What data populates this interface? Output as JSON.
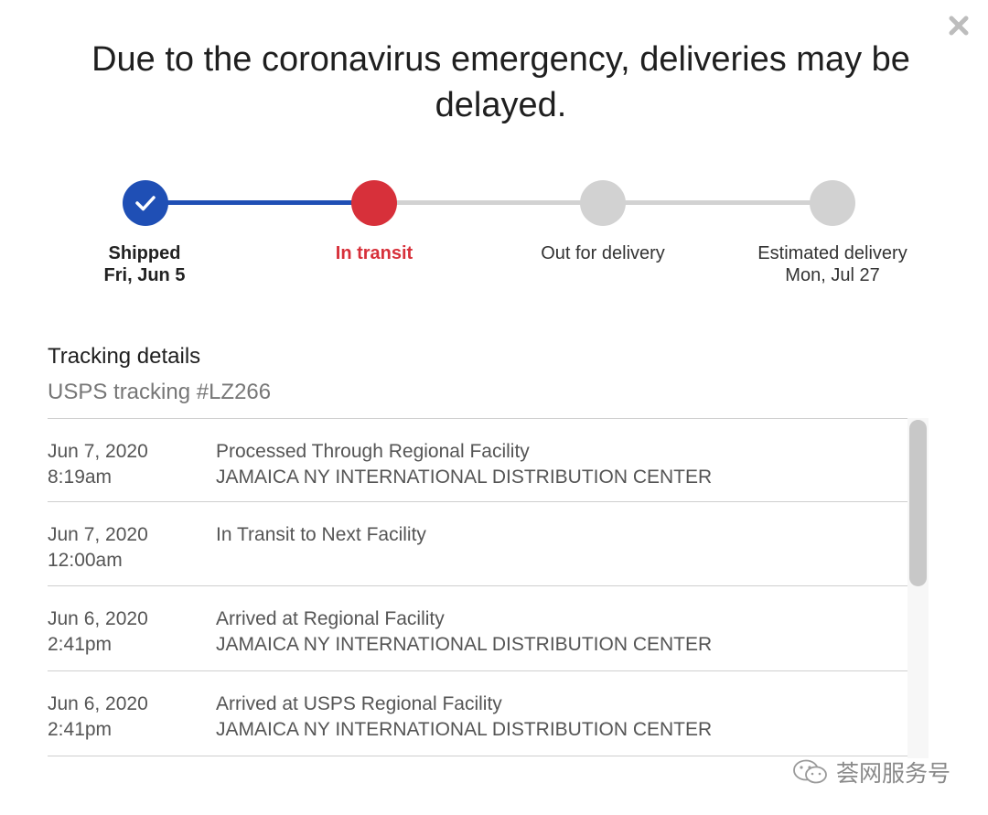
{
  "dialog": {
    "banner": "Due to the coronavirus emergency, deliveries may be delayed.",
    "close_icon": "close-icon"
  },
  "colors": {
    "done": "#1f4fb5",
    "current": "#d7303a",
    "pending": "#d2d2d2",
    "done_line": "#1f4fb5"
  },
  "progress": {
    "steps": [
      {
        "key": "shipped",
        "title": "Shipped",
        "date": "Fri, Jun 5",
        "status": "done",
        "icon": "checkmark-icon"
      },
      {
        "key": "in_transit",
        "title": "In transit",
        "date": "",
        "status": "current"
      },
      {
        "key": "out_for_delivery",
        "title": "Out for delivery",
        "date": "",
        "status": "pending"
      },
      {
        "key": "estimated_delivery",
        "title": "Estimated delivery",
        "date": "Mon, Jul 27",
        "status": "pending"
      }
    ]
  },
  "tracking": {
    "title": "Tracking details",
    "number_label": "USPS tracking #LZ266",
    "events": [
      {
        "date": "Jun 7, 2020",
        "time": "8:19am",
        "status": "Processed Through Regional Facility",
        "location": "JAMAICA NY INTERNATIONAL DISTRIBUTION CENTER"
      },
      {
        "date": "Jun 7, 2020",
        "time": "12:00am",
        "status": "In Transit to Next Facility",
        "location": ""
      },
      {
        "date": "Jun 6, 2020",
        "time": "2:41pm",
        "status": "Arrived at Regional Facility",
        "location": "JAMAICA NY INTERNATIONAL DISTRIBUTION CENTER"
      },
      {
        "date": "Jun 6, 2020",
        "time": "2:41pm",
        "status": "Arrived at USPS Regional Facility",
        "location": "JAMAICA NY INTERNATIONAL DISTRIBUTION CENTER"
      }
    ]
  },
  "watermark": {
    "text": "荟网服务号",
    "icon": "wechat-icon"
  }
}
